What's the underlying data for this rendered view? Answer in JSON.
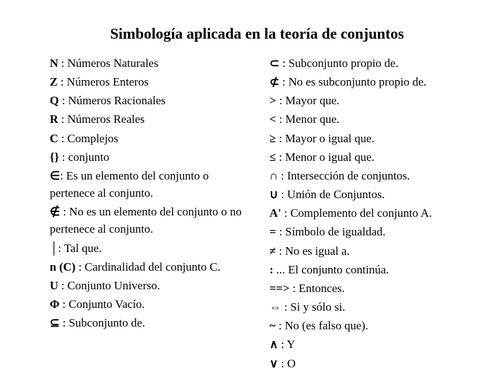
{
  "title": "Simbología aplicada en la teoría de conjuntos",
  "left": [
    {
      "sym": "N",
      "desc": " : Números Naturales"
    },
    {
      "sym": "Z",
      "desc": " : Números Enteros"
    },
    {
      "sym": "Q",
      "desc": " : Números Racionales"
    },
    {
      "sym": "R",
      "desc": " : Números Reales"
    },
    {
      "sym": "C",
      "desc": " : Complejos"
    },
    {
      "sym": "{}",
      "desc": " : conjunto"
    },
    {
      "sym": "∈",
      "desc": ": Es un elemento del conjunto o pertenece al conjunto."
    },
    {
      "sym": "∉",
      "desc": " : No es un elemento del conjunto o no pertenece al conjunto."
    },
    {
      "sym": "│",
      "desc": ": Tal que."
    },
    {
      "sym": " n (C)",
      "desc": " :  Cardinalidad del conjunto C."
    },
    {
      "sym": "U",
      "desc": " :  Conjunto Universo."
    },
    {
      "sym": "Φ",
      "desc": " :  Conjunto Vacío."
    },
    {
      "sym": "⊆",
      "desc": " : Subconjunto de."
    }
  ],
  "right": [
    {
      "sym": "⊂",
      "desc": " :  Subconjunto propio de."
    },
    {
      "sym": "⊄",
      "desc": " :  No es subconjunto propio de."
    },
    {
      "sym": ">",
      "desc": " : Mayor que."
    },
    {
      "sym": " <",
      "desc": " :  Menor que."
    },
    {
      "sym": " ≥",
      "desc": " :  Mayor o igual que."
    },
    {
      "sym": " ≤",
      "desc": " : Menor o igual que."
    },
    {
      "sym": " ∩",
      "desc": " : Intersección de conjuntos."
    },
    {
      "sym": " ∪",
      "desc": " : Unión de Conjuntos."
    },
    {
      "sym": " A'",
      "desc": " : Complemento del conjunto A."
    },
    {
      "sym": " =",
      "desc": " :  Símbolo de igualdad."
    },
    {
      "sym": " ≠",
      "desc": " : No es igual a."
    },
    {
      "sym": " :",
      "desc": "  ... El conjunto continúa."
    },
    {
      "sym": " ==>",
      "desc": " :  Entonces."
    },
    {
      "sym": " ⇔",
      "desc": " : Si y sólo si."
    },
    {
      "sym": " ~ ",
      "desc": ": No (es falso que)."
    },
    {
      "sym": " ∧",
      "desc": " :  Y"
    },
    {
      "sym": " ∨",
      "desc": " : O"
    }
  ]
}
